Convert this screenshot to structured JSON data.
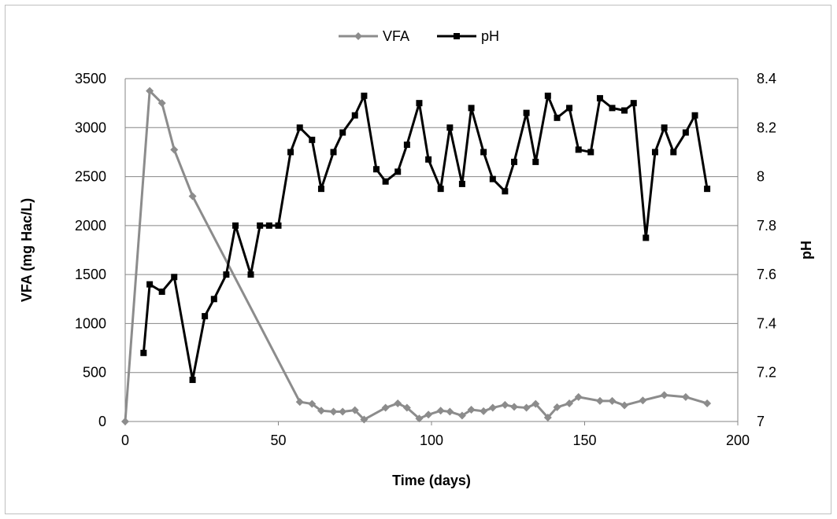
{
  "chart_data": {
    "type": "line",
    "title": "",
    "xlabel": "Time (days)",
    "ylabel": "VFA (mg Hac/L)",
    "y2label": "pH",
    "xlim": [
      0,
      200
    ],
    "ylim": [
      0,
      3500
    ],
    "y2lim": [
      7,
      8.4
    ],
    "x_ticks": [
      "0",
      "50",
      "100",
      "150",
      "200"
    ],
    "y_ticks": [
      "0",
      "500",
      "1000",
      "1500",
      "2000",
      "2500",
      "3000",
      "3500"
    ],
    "y2_ticks": [
      "7",
      "7.2",
      "7.4",
      "7.6",
      "7.8",
      "8",
      "8.2",
      "8.4"
    ],
    "grid": "horizontal",
    "legend_position": "top-center",
    "series": [
      {
        "name": "VFA",
        "axis": "left",
        "color": "#8c8c8c",
        "marker": "diamond",
        "x": [
          0,
          8,
          12,
          16,
          22,
          57,
          61,
          64,
          68,
          71,
          75,
          78,
          85,
          89,
          92,
          96,
          99,
          103,
          106,
          110,
          113,
          117,
          120,
          124,
          127,
          131,
          134,
          138,
          141,
          145,
          148,
          155,
          159,
          163,
          169,
          176,
          183,
          190
        ],
        "y": [
          0,
          3375,
          3250,
          2775,
          2300,
          200,
          180,
          110,
          100,
          100,
          115,
          20,
          140,
          185,
          140,
          30,
          70,
          110,
          100,
          60,
          120,
          105,
          140,
          170,
          150,
          140,
          180,
          40,
          145,
          185,
          250,
          210,
          210,
          165,
          215,
          270,
          250,
          185
        ]
      },
      {
        "name": "pH",
        "axis": "right",
        "color": "#000000",
        "marker": "square",
        "x": [
          6,
          8,
          12,
          16,
          22,
          26,
          29,
          33,
          36,
          41,
          44,
          47,
          50,
          54,
          57,
          61,
          64,
          68,
          71,
          75,
          78,
          82,
          85,
          89,
          92,
          96,
          99,
          103,
          106,
          110,
          113,
          117,
          120,
          124,
          127,
          131,
          134,
          138,
          141,
          145,
          148,
          152,
          155,
          159,
          163,
          166,
          170,
          173,
          176,
          179,
          183,
          186,
          190
        ],
        "y": [
          7.28,
          7.56,
          7.53,
          7.59,
          7.17,
          7.43,
          7.5,
          7.6,
          7.8,
          7.6,
          7.8,
          7.8,
          7.8,
          8.1,
          8.2,
          8.15,
          7.95,
          8.1,
          8.18,
          8.25,
          8.33,
          8.03,
          7.98,
          8.02,
          8.13,
          8.3,
          8.07,
          7.95,
          8.2,
          7.97,
          8.28,
          8.1,
          7.99,
          7.94,
          8.06,
          8.26,
          8.06,
          8.33,
          8.24,
          8.28,
          8.11,
          8.1,
          8.32,
          8.28,
          8.27,
          8.3,
          7.75,
          8.1,
          8.2,
          8.1,
          8.18,
          8.25,
          7.95
        ]
      }
    ]
  }
}
